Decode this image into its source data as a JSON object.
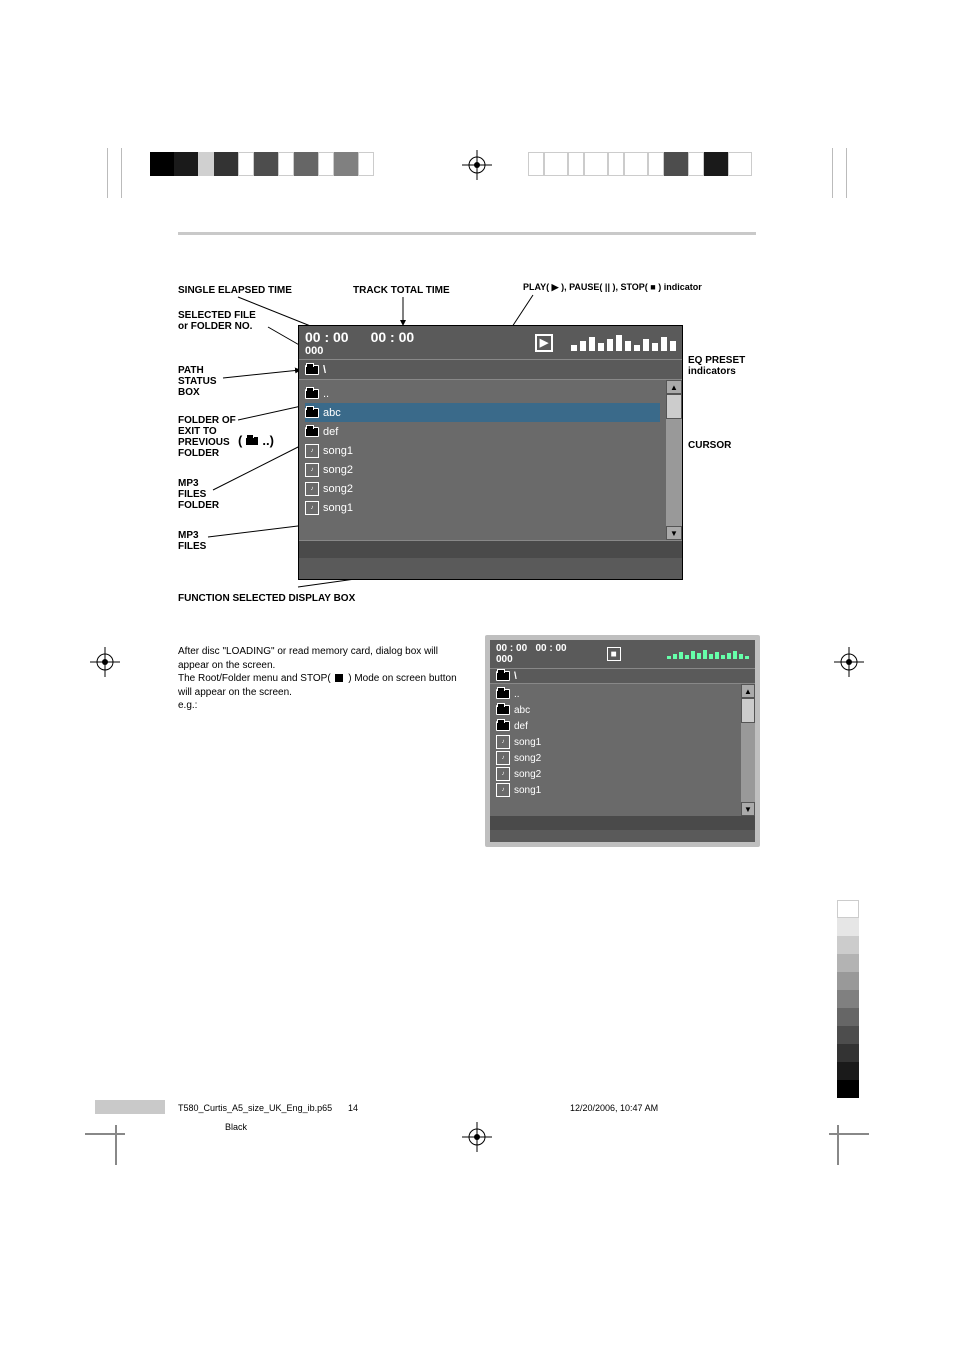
{
  "colors": {
    "screen_bg": "#5a5a5a",
    "list_bg": "#6a6a6a",
    "sel_bg": "#3a6a8a",
    "hr": "#c9c9c9",
    "eq_green": "#66ff99"
  },
  "labels": {
    "single_elapsed": "SINGLE ELAPSED TIME",
    "track_total": "TRACK TOTAL TIME",
    "play_pause_stop": "PLAY( ▶ ), PAUSE( || ), STOP( ■ ) indicator",
    "selected_file": "SELECTED FILE\nor FOLDER NO.",
    "path_status": "PATH\nSTATUS\nBOX",
    "folder_exit": "FOLDER OF\nEXIT TO\nPREVIOUS\nFOLDER",
    "folder_exit_icon_suffix": "..",
    "mp3_folder": "MP3\nFILES\nFOLDER",
    "mp3_files": "MP3\nFILES",
    "eq_preset": "EQ PRESET\nindicators",
    "cursor": "CURSOR",
    "func_box": "FUNCTION SELECTED DISPLAY BOX"
  },
  "main_screen": {
    "time1": "00 : 00",
    "time2": "00 : 00",
    "file_no": "000",
    "path": "\\",
    "rows": [
      {
        "type": "folder",
        "label": ".."
      },
      {
        "type": "folder",
        "label": "abc",
        "selected": true
      },
      {
        "type": "folder",
        "label": "def"
      },
      {
        "type": "mp3",
        "label": "song1"
      },
      {
        "type": "mp3",
        "label": "song2"
      },
      {
        "type": "mp3",
        "label": "song2"
      },
      {
        "type": "mp3",
        "label": "song1"
      }
    ],
    "play_glyph": "▶"
  },
  "small_screen": {
    "time1": "00 : 00",
    "time2": "00 : 00",
    "file_no": "000",
    "stop_glyph": "■",
    "path": "\\",
    "rows": [
      {
        "type": "folder",
        "label": ".."
      },
      {
        "type": "folder",
        "label": "abc",
        "selected": true
      },
      {
        "type": "folder",
        "label": "def"
      },
      {
        "type": "mp3",
        "label": "song1"
      },
      {
        "type": "mp3",
        "label": "song2"
      },
      {
        "type": "mp3",
        "label": "song2"
      },
      {
        "type": "mp3",
        "label": "song1"
      }
    ]
  },
  "para": {
    "l1": "After disc \"LOADING\" or read memory card, dialog box will appear on the screen.",
    "l2a": "The Root/Folder menu and STOP(",
    "l2b": ") Mode on screen button will appear on the screen.",
    "l3": "e.g.:"
  },
  "footer": {
    "file": "T580_Curtis_A5_size_UK_Eng_ib.p65",
    "page": "14",
    "date": "12/20/2006, 10:47 AM",
    "color": "Black"
  },
  "gray_left": [
    "#000000",
    "#1a1a1a",
    "#d0d0d0",
    "#333333",
    "#ffffff",
    "#4d4d4d",
    "#ffffff",
    "#666666",
    "#ffffff",
    "#808080",
    "#ffffff"
  ],
  "gray_right": [
    "#ffffff",
    "#ffffff",
    "#ffffff",
    "#ffffff",
    "#ffffff",
    "#ffffff",
    "#ffffff",
    "#4d4d4d",
    "#ffffff",
    "#1a1a1a",
    "#ffffff"
  ],
  "gray_left_w": [
    24,
    24,
    16,
    24,
    16,
    24,
    16,
    24,
    16,
    24,
    16
  ],
  "gray_right_w": [
    16,
    24,
    16,
    24,
    16,
    24,
    16,
    24,
    16,
    24,
    24
  ],
  "gray_v": [
    "#ffffff",
    "#e6e6e6",
    "#cccccc",
    "#b3b3b3",
    "#999999",
    "#808080",
    "#666666",
    "#4d4d4d",
    "#333333",
    "#1a1a1a",
    "#000000"
  ],
  "gray_v_h": [
    18,
    18,
    18,
    18,
    18,
    18,
    18,
    18,
    18,
    18,
    18
  ]
}
